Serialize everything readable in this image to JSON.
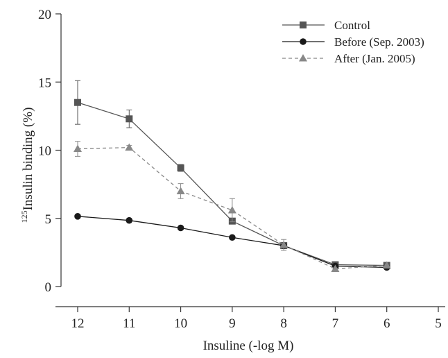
{
  "chart_data": {
    "type": "line",
    "xlabel": "Insuline (-log M)",
    "ylabel_sup": "125",
    "ylabel_main": "Insulin binding (%)",
    "x_ticks": [
      12,
      11,
      10,
      9,
      8,
      7,
      6,
      5
    ],
    "y_ticks": [
      0,
      5,
      10,
      15,
      20
    ],
    "xlim": [
      12,
      5
    ],
    "ylim": [
      0,
      20
    ],
    "x_reversed": true,
    "grid": false,
    "legend_position": "top-right",
    "series": [
      {
        "name": "Control",
        "marker": "square",
        "line_style": "solid",
        "color": "#555555",
        "x": [
          12,
          11,
          10,
          9,
          8,
          7,
          6
        ],
        "y": [
          13.5,
          12.3,
          8.7,
          4.8,
          3.0,
          1.6,
          1.55
        ],
        "error": [
          1.6,
          0.65,
          0.25,
          0,
          0,
          0,
          0
        ]
      },
      {
        "name": "Before (Sep. 2003)",
        "marker": "circle",
        "line_style": "solid",
        "color": "#1a1a1a",
        "x": [
          12,
          11,
          10,
          9,
          8,
          7,
          6
        ],
        "y": [
          5.15,
          4.85,
          4.3,
          3.6,
          3.0,
          1.5,
          1.4
        ],
        "error": [
          0,
          0,
          0,
          0,
          0,
          0,
          0
        ]
      },
      {
        "name": "After (Jan. 2005)",
        "marker": "triangle",
        "line_style": "dashed",
        "color": "#888888",
        "x": [
          12,
          11,
          10,
          9,
          8,
          7,
          6
        ],
        "y": [
          10.1,
          10.2,
          7.0,
          5.6,
          3.05,
          1.3,
          1.55
        ],
        "error": [
          0.55,
          0.15,
          0.55,
          0.85,
          0.4,
          0,
          0
        ]
      }
    ]
  }
}
